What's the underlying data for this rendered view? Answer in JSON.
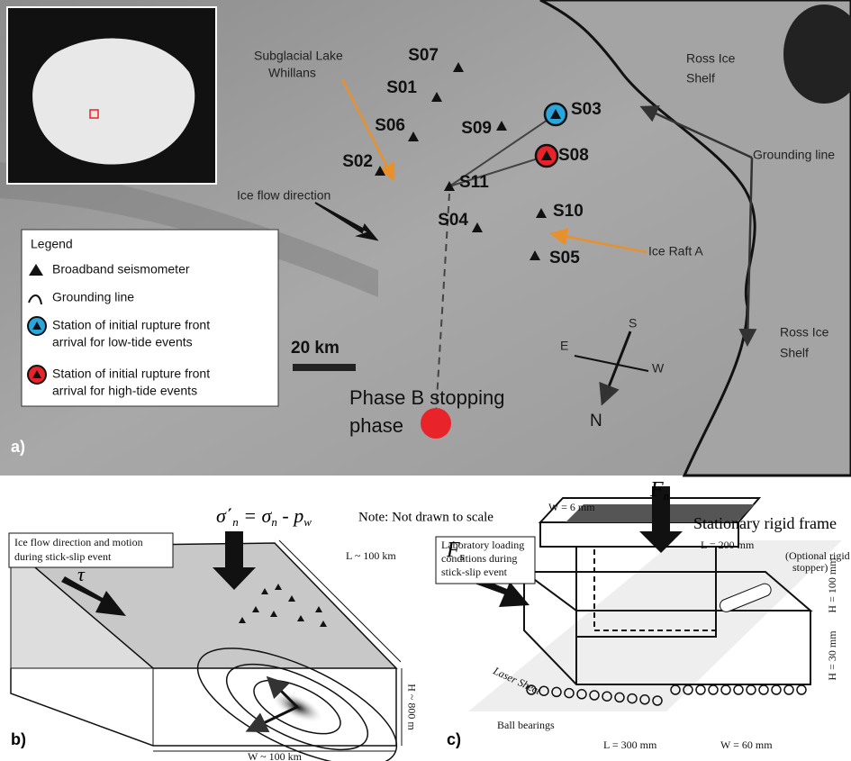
{
  "panel_a": {
    "label": "a)",
    "stations": [
      "S07",
      "S01",
      "S06",
      "S09",
      "S03",
      "S08",
      "S02",
      "S11",
      "S10",
      "S04",
      "S05"
    ],
    "lake": [
      "Subglacial Lake",
      "Whillans"
    ],
    "shelf_top": [
      "Ross Ice",
      "Shelf"
    ],
    "shelf_bottom": [
      "Ross Ice",
      "Shelf"
    ],
    "grounding_line": "Grounding line",
    "flow": "Ice flow direction",
    "raft": "Ice Raft A",
    "scale": "20 km",
    "phase": [
      "Phase B stopping",
      "phase"
    ],
    "compass": {
      "s": "S",
      "e": "E",
      "w": "W",
      "n": "N"
    },
    "legend": {
      "title": "Legend",
      "items": [
        [
          "Broadband seismometer"
        ],
        [
          "Grounding line"
        ],
        [
          "Station of initial rupture front",
          "arrival for low-tide events"
        ],
        [
          "Station of initial rupture front",
          "arrival for high-tide events"
        ]
      ]
    }
  },
  "panel_b": {
    "label": "b)",
    "equation": [
      "σ΄",
      "n",
      " = σ",
      "n",
      " - p",
      "w"
    ],
    "note": "Note: Not drawn to scale",
    "box": [
      "Ice flow direction and motion",
      "during stick-slip event"
    ],
    "tau": "τ",
    "length": "L ~ 100 km",
    "height": "H ~ 800 m",
    "width": "W ~ 100 km"
  },
  "panel_c": {
    "label": "c)",
    "fn": [
      "F",
      "n"
    ],
    "fs": [
      "F",
      "s"
    ],
    "box": [
      "Laboratory loading",
      "conditions during",
      "stick-slip event"
    ],
    "frame_width": "W = 6 mm",
    "frame": "Stationary rigid frame",
    "frame_length": "L = 200 mm",
    "stopper": [
      "(Optional rigid",
      "stopper)"
    ],
    "frame_height": "H = 100 mm",
    "block_height": "H = 30 mm",
    "laser": "Laser Sheet",
    "bearings": "Ball bearings",
    "block_length": "L = 300 mm",
    "block_width": "W = 60 mm"
  }
}
